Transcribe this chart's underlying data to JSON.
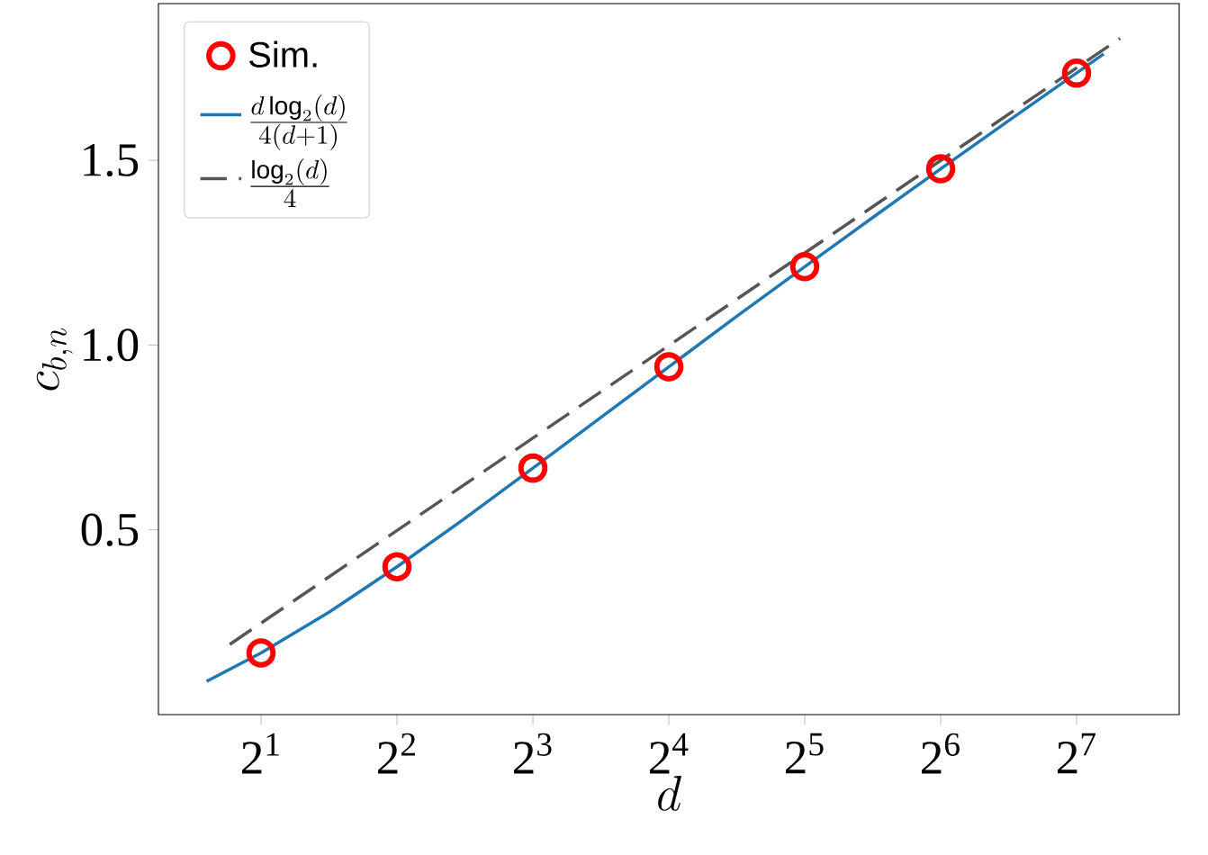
{
  "chart_data": {
    "type": "scatter",
    "xlabel": "d",
    "ylabel": "c_{b,n}",
    "log": "x",
    "xlim": [
      1.185,
      216
    ],
    "ylim": [
      0.0,
      1.924
    ],
    "xticks": [
      {
        "value": 2,
        "label": "2$^{1}$"
      },
      {
        "value": 4,
        "label": "2$^{2}$"
      },
      {
        "value": 8,
        "label": "2$^{3}$"
      },
      {
        "value": 16,
        "label": "2$^{4}$"
      },
      {
        "value": 32,
        "label": "2$^{5}$"
      },
      {
        "value": 64,
        "label": "2$^{6}$"
      },
      {
        "value": 128,
        "label": "2$^{7}$"
      }
    ],
    "yticks": [
      {
        "value": 0.5,
        "label": "0.5"
      },
      {
        "value": 1.0,
        "label": "1.0"
      },
      {
        "value": 1.5,
        "label": "1.5"
      }
    ],
    "legend": "top left",
    "series": [
      {
        "name": "Sim.",
        "marker": "circle",
        "color": "#ff0000",
        "x": [
          2,
          4,
          8,
          16,
          32,
          64,
          128
        ],
        "values": [
          0.167,
          0.4,
          0.667,
          0.941,
          1.212,
          1.477,
          1.736
        ]
      },
      {
        "name": "\\frac{d\\log_2(d)}{4(d+1)}",
        "type": "line",
        "marker": "none",
        "line_style": "solid",
        "color": "#1f77b4",
        "x": [
          1.516,
          2,
          2.828,
          4,
          5.657,
          8,
          11.31,
          16,
          22.63,
          32,
          45.25,
          64,
          90.51,
          128,
          147.0
        ],
        "values": [
          0.09,
          0.167,
          0.277,
          0.4,
          0.531,
          0.667,
          0.804,
          0.941,
          1.078,
          1.212,
          1.345,
          1.477,
          1.607,
          1.736,
          1.788
        ]
      },
      {
        "name": "\\frac{\\log_2(d)}{4}",
        "type": "line",
        "marker": "none",
        "line_style": "dashed",
        "color": "#555555",
        "x": [
          1.705,
          159.8
        ],
        "values": [
          0.19,
          1.83
        ]
      }
    ]
  }
}
